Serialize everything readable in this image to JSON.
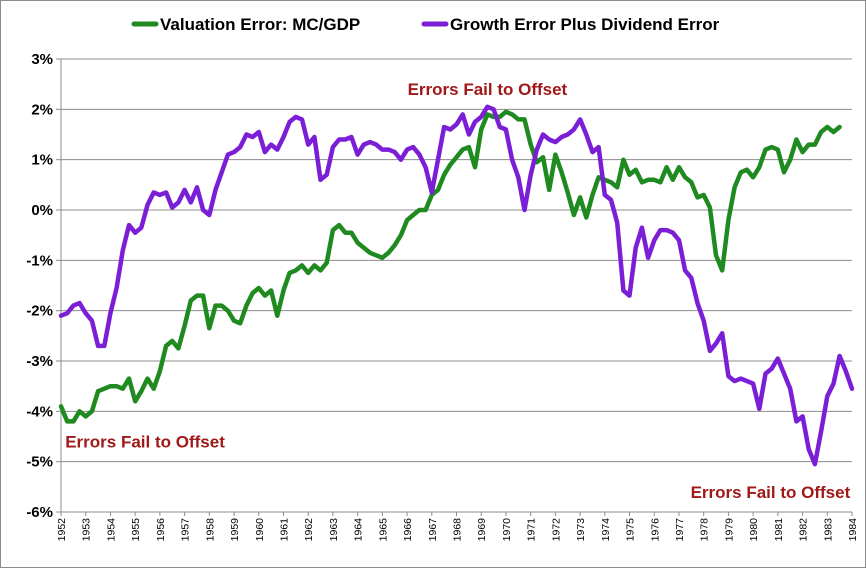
{
  "chart_data": {
    "type": "line",
    "title": "",
    "xlabel": "",
    "ylabel": "",
    "ylim": [
      -6,
      3
    ],
    "y_ticks": [
      "3%",
      "2%",
      "1%",
      "0%",
      "-1%",
      "-2%",
      "-3%",
      "-4%",
      "-5%",
      "-6%"
    ],
    "x_ticks": [
      "1952",
      "1953",
      "1954",
      "1955",
      "1956",
      "1957",
      "1958",
      "1959",
      "1960",
      "1961",
      "1962",
      "1963",
      "1964",
      "1965",
      "1966",
      "1967",
      "1968",
      "1969",
      "1970",
      "1971",
      "1972",
      "1973",
      "1974",
      "1975",
      "1976",
      "1977",
      "1978",
      "1979",
      "1980",
      "1981",
      "1982",
      "1983",
      "1984"
    ],
    "grid": "horizontal",
    "legend_position": "top",
    "series": [
      {
        "name": "Valuation Error: MC/GDP",
        "color": "#1f8a1f",
        "points": [
          [
            1952.0,
            -3.9
          ],
          [
            1952.25,
            -4.2
          ],
          [
            1952.5,
            -4.2
          ],
          [
            1952.75,
            -4.0
          ],
          [
            1953.0,
            -4.1
          ],
          [
            1953.25,
            -4.0
          ],
          [
            1953.5,
            -3.6
          ],
          [
            1953.75,
            -3.55
          ],
          [
            1954.0,
            -3.5
          ],
          [
            1954.25,
            -3.5
          ],
          [
            1954.5,
            -3.55
          ],
          [
            1954.75,
            -3.35
          ],
          [
            1955.0,
            -3.8
          ],
          [
            1955.25,
            -3.6
          ],
          [
            1955.5,
            -3.35
          ],
          [
            1955.75,
            -3.55
          ],
          [
            1956.0,
            -3.2
          ],
          [
            1956.25,
            -2.7
          ],
          [
            1956.5,
            -2.6
          ],
          [
            1956.75,
            -2.75
          ],
          [
            1957.0,
            -2.3
          ],
          [
            1957.25,
            -1.8
          ],
          [
            1957.5,
            -1.7
          ],
          [
            1957.75,
            -1.7
          ],
          [
            1958.0,
            -2.35
          ],
          [
            1958.25,
            -1.9
          ],
          [
            1958.5,
            -1.9
          ],
          [
            1958.75,
            -2.0
          ],
          [
            1959.0,
            -2.2
          ],
          [
            1959.25,
            -2.25
          ],
          [
            1959.5,
            -1.9
          ],
          [
            1959.75,
            -1.65
          ],
          [
            1960.0,
            -1.55
          ],
          [
            1960.25,
            -1.7
          ],
          [
            1960.5,
            -1.6
          ],
          [
            1960.75,
            -2.1
          ],
          [
            1961.0,
            -1.6
          ],
          [
            1961.25,
            -1.25
          ],
          [
            1961.5,
            -1.2
          ],
          [
            1961.75,
            -1.1
          ],
          [
            1962.0,
            -1.25
          ],
          [
            1962.25,
            -1.1
          ],
          [
            1962.5,
            -1.2
          ],
          [
            1962.75,
            -1.05
          ],
          [
            1963.0,
            -0.4
          ],
          [
            1963.25,
            -0.3
          ],
          [
            1963.5,
            -0.45
          ],
          [
            1963.75,
            -0.45
          ],
          [
            1964.0,
            -0.65
          ],
          [
            1964.25,
            -0.75
          ],
          [
            1964.5,
            -0.85
          ],
          [
            1964.75,
            -0.9
          ],
          [
            1965.0,
            -0.95
          ],
          [
            1965.25,
            -0.85
          ],
          [
            1965.5,
            -0.7
          ],
          [
            1965.75,
            -0.5
          ],
          [
            1966.0,
            -0.2
          ],
          [
            1966.25,
            -0.1
          ],
          [
            1966.5,
            0.0
          ],
          [
            1966.75,
            0.0
          ],
          [
            1967.0,
            0.3
          ],
          [
            1967.25,
            0.4
          ],
          [
            1967.5,
            0.7
          ],
          [
            1967.75,
            0.9
          ],
          [
            1968.0,
            1.05
          ],
          [
            1968.25,
            1.2
          ],
          [
            1968.5,
            1.25
          ],
          [
            1968.75,
            0.85
          ],
          [
            1969.0,
            1.6
          ],
          [
            1969.25,
            1.9
          ],
          [
            1969.5,
            1.85
          ],
          [
            1969.75,
            1.85
          ],
          [
            1970.0,
            1.95
          ],
          [
            1970.25,
            1.9
          ],
          [
            1970.5,
            1.8
          ],
          [
            1970.75,
            1.8
          ],
          [
            1971.0,
            1.3
          ],
          [
            1971.25,
            0.95
          ],
          [
            1971.5,
            1.05
          ],
          [
            1971.75,
            0.4
          ],
          [
            1972.0,
            1.1
          ],
          [
            1972.25,
            0.75
          ],
          [
            1972.5,
            0.35
          ],
          [
            1972.75,
            -0.1
          ],
          [
            1973.0,
            0.25
          ],
          [
            1973.25,
            -0.15
          ],
          [
            1973.5,
            0.3
          ],
          [
            1973.75,
            0.65
          ],
          [
            1974.0,
            0.6
          ],
          [
            1974.25,
            0.55
          ],
          [
            1974.5,
            0.45
          ],
          [
            1974.75,
            1.0
          ],
          [
            1975.0,
            0.7
          ],
          [
            1975.25,
            0.8
          ],
          [
            1975.5,
            0.55
          ],
          [
            1975.75,
            0.6
          ],
          [
            1976.0,
            0.6
          ],
          [
            1976.25,
            0.55
          ],
          [
            1976.5,
            0.85
          ],
          [
            1976.75,
            0.6
          ],
          [
            1977.0,
            0.85
          ],
          [
            1977.25,
            0.65
          ],
          [
            1977.5,
            0.55
          ],
          [
            1977.75,
            0.25
          ],
          [
            1978.0,
            0.3
          ],
          [
            1978.25,
            0.05
          ],
          [
            1978.5,
            -0.9
          ],
          [
            1978.75,
            -1.2
          ],
          [
            1979.0,
            -0.2
          ],
          [
            1979.25,
            0.45
          ],
          [
            1979.5,
            0.75
          ],
          [
            1979.75,
            0.8
          ],
          [
            1980.0,
            0.65
          ],
          [
            1980.25,
            0.85
          ],
          [
            1980.5,
            1.2
          ],
          [
            1980.75,
            1.25
          ],
          [
            1981.0,
            1.2
          ],
          [
            1981.25,
            0.75
          ],
          [
            1981.5,
            1.0
          ],
          [
            1981.75,
            1.4
          ],
          [
            1982.0,
            1.15
          ],
          [
            1982.25,
            1.3
          ],
          [
            1982.5,
            1.3
          ],
          [
            1982.75,
            1.55
          ],
          [
            1983.0,
            1.65
          ],
          [
            1983.25,
            1.55
          ],
          [
            1983.5,
            1.65
          ]
        ]
      },
      {
        "name": "Growth Error Plus Dividend Error",
        "color": "#7a1fd6",
        "points": [
          [
            1952.0,
            -2.1
          ],
          [
            1952.25,
            -2.05
          ],
          [
            1952.5,
            -1.9
          ],
          [
            1952.75,
            -1.85
          ],
          [
            1953.0,
            -2.05
          ],
          [
            1953.25,
            -2.2
          ],
          [
            1953.5,
            -2.7
          ],
          [
            1953.75,
            -2.7
          ],
          [
            1954.0,
            -2.05
          ],
          [
            1954.25,
            -1.55
          ],
          [
            1954.5,
            -0.8
          ],
          [
            1954.75,
            -0.3
          ],
          [
            1955.0,
            -0.45
          ],
          [
            1955.25,
            -0.35
          ],
          [
            1955.5,
            0.1
          ],
          [
            1955.75,
            0.35
          ],
          [
            1956.0,
            0.3
          ],
          [
            1956.25,
            0.35
          ],
          [
            1956.5,
            0.05
          ],
          [
            1956.75,
            0.15
          ],
          [
            1957.0,
            0.4
          ],
          [
            1957.25,
            0.15
          ],
          [
            1957.5,
            0.45
          ],
          [
            1957.75,
            0.0
          ],
          [
            1958.0,
            -0.1
          ],
          [
            1958.25,
            0.4
          ],
          [
            1958.5,
            0.75
          ],
          [
            1958.75,
            1.1
          ],
          [
            1959.0,
            1.15
          ],
          [
            1959.25,
            1.25
          ],
          [
            1959.5,
            1.5
          ],
          [
            1959.75,
            1.45
          ],
          [
            1960.0,
            1.55
          ],
          [
            1960.25,
            1.15
          ],
          [
            1960.5,
            1.3
          ],
          [
            1960.75,
            1.2
          ],
          [
            1961.0,
            1.45
          ],
          [
            1961.25,
            1.75
          ],
          [
            1961.5,
            1.85
          ],
          [
            1961.75,
            1.8
          ],
          [
            1962.0,
            1.3
          ],
          [
            1962.25,
            1.45
          ],
          [
            1962.5,
            0.6
          ],
          [
            1962.75,
            0.7
          ],
          [
            1963.0,
            1.25
          ],
          [
            1963.25,
            1.4
          ],
          [
            1963.5,
            1.4
          ],
          [
            1963.75,
            1.45
          ],
          [
            1964.0,
            1.1
          ],
          [
            1964.25,
            1.3
          ],
          [
            1964.5,
            1.35
          ],
          [
            1964.75,
            1.3
          ],
          [
            1965.0,
            1.2
          ],
          [
            1965.25,
            1.2
          ],
          [
            1965.5,
            1.15
          ],
          [
            1965.75,
            1.0
          ],
          [
            1966.0,
            1.2
          ],
          [
            1966.25,
            1.25
          ],
          [
            1966.5,
            1.1
          ],
          [
            1966.75,
            0.85
          ],
          [
            1967.0,
            0.35
          ],
          [
            1967.25,
            1.0
          ],
          [
            1967.5,
            1.65
          ],
          [
            1967.75,
            1.6
          ],
          [
            1968.0,
            1.7
          ],
          [
            1968.25,
            1.9
          ],
          [
            1968.5,
            1.5
          ],
          [
            1968.75,
            1.75
          ],
          [
            1969.0,
            1.85
          ],
          [
            1969.25,
            2.05
          ],
          [
            1969.5,
            2.0
          ],
          [
            1969.75,
            1.65
          ],
          [
            1970.0,
            1.6
          ],
          [
            1970.25,
            1.0
          ],
          [
            1970.5,
            0.65
          ],
          [
            1970.75,
            0.0
          ],
          [
            1971.0,
            0.7
          ],
          [
            1971.25,
            1.2
          ],
          [
            1971.5,
            1.5
          ],
          [
            1971.75,
            1.4
          ],
          [
            1972.0,
            1.35
          ],
          [
            1972.25,
            1.45
          ],
          [
            1972.5,
            1.5
          ],
          [
            1972.75,
            1.6
          ],
          [
            1973.0,
            1.8
          ],
          [
            1973.25,
            1.5
          ],
          [
            1973.5,
            1.15
          ],
          [
            1973.75,
            1.25
          ],
          [
            1974.0,
            0.3
          ],
          [
            1974.25,
            0.2
          ],
          [
            1974.5,
            -0.25
          ],
          [
            1974.75,
            -1.6
          ],
          [
            1975.0,
            -1.7
          ],
          [
            1975.25,
            -0.75
          ],
          [
            1975.5,
            -0.35
          ],
          [
            1975.75,
            -0.95
          ],
          [
            1976.0,
            -0.6
          ],
          [
            1976.25,
            -0.4
          ],
          [
            1976.5,
            -0.4
          ],
          [
            1976.75,
            -0.45
          ],
          [
            1977.0,
            -0.6
          ],
          [
            1977.25,
            -1.2
          ],
          [
            1977.5,
            -1.35
          ],
          [
            1977.75,
            -1.85
          ],
          [
            1978.0,
            -2.2
          ],
          [
            1978.25,
            -2.8
          ],
          [
            1978.5,
            -2.65
          ],
          [
            1978.75,
            -2.45
          ],
          [
            1979.0,
            -3.3
          ],
          [
            1979.25,
            -3.4
          ],
          [
            1979.5,
            -3.35
          ],
          [
            1979.75,
            -3.4
          ],
          [
            1980.0,
            -3.45
          ],
          [
            1980.25,
            -3.95
          ],
          [
            1980.5,
            -3.25
          ],
          [
            1980.75,
            -3.15
          ],
          [
            1981.0,
            -2.95
          ],
          [
            1981.25,
            -3.25
          ],
          [
            1981.5,
            -3.55
          ],
          [
            1981.75,
            -4.2
          ],
          [
            1982.0,
            -4.1
          ],
          [
            1982.25,
            -4.75
          ],
          [
            1982.5,
            -5.05
          ],
          [
            1982.75,
            -4.4
          ],
          [
            1983.0,
            -3.7
          ],
          [
            1983.25,
            -3.45
          ],
          [
            1983.5,
            -2.9
          ],
          [
            1983.75,
            -3.2
          ],
          [
            1984.0,
            -3.55
          ]
        ]
      }
    ],
    "annotations": [
      {
        "text": "Errors Fail to Offset",
        "x": 1969.25,
        "y": 2.4,
        "color": "#a01818"
      },
      {
        "text": "Errors Fail to Offset",
        "x": 1955.4,
        "y": -4.6,
        "color": "#a01818"
      },
      {
        "text": "Errors Fail to Offset",
        "x": 1980.7,
        "y": -5.6,
        "color": "#a01818"
      }
    ]
  }
}
